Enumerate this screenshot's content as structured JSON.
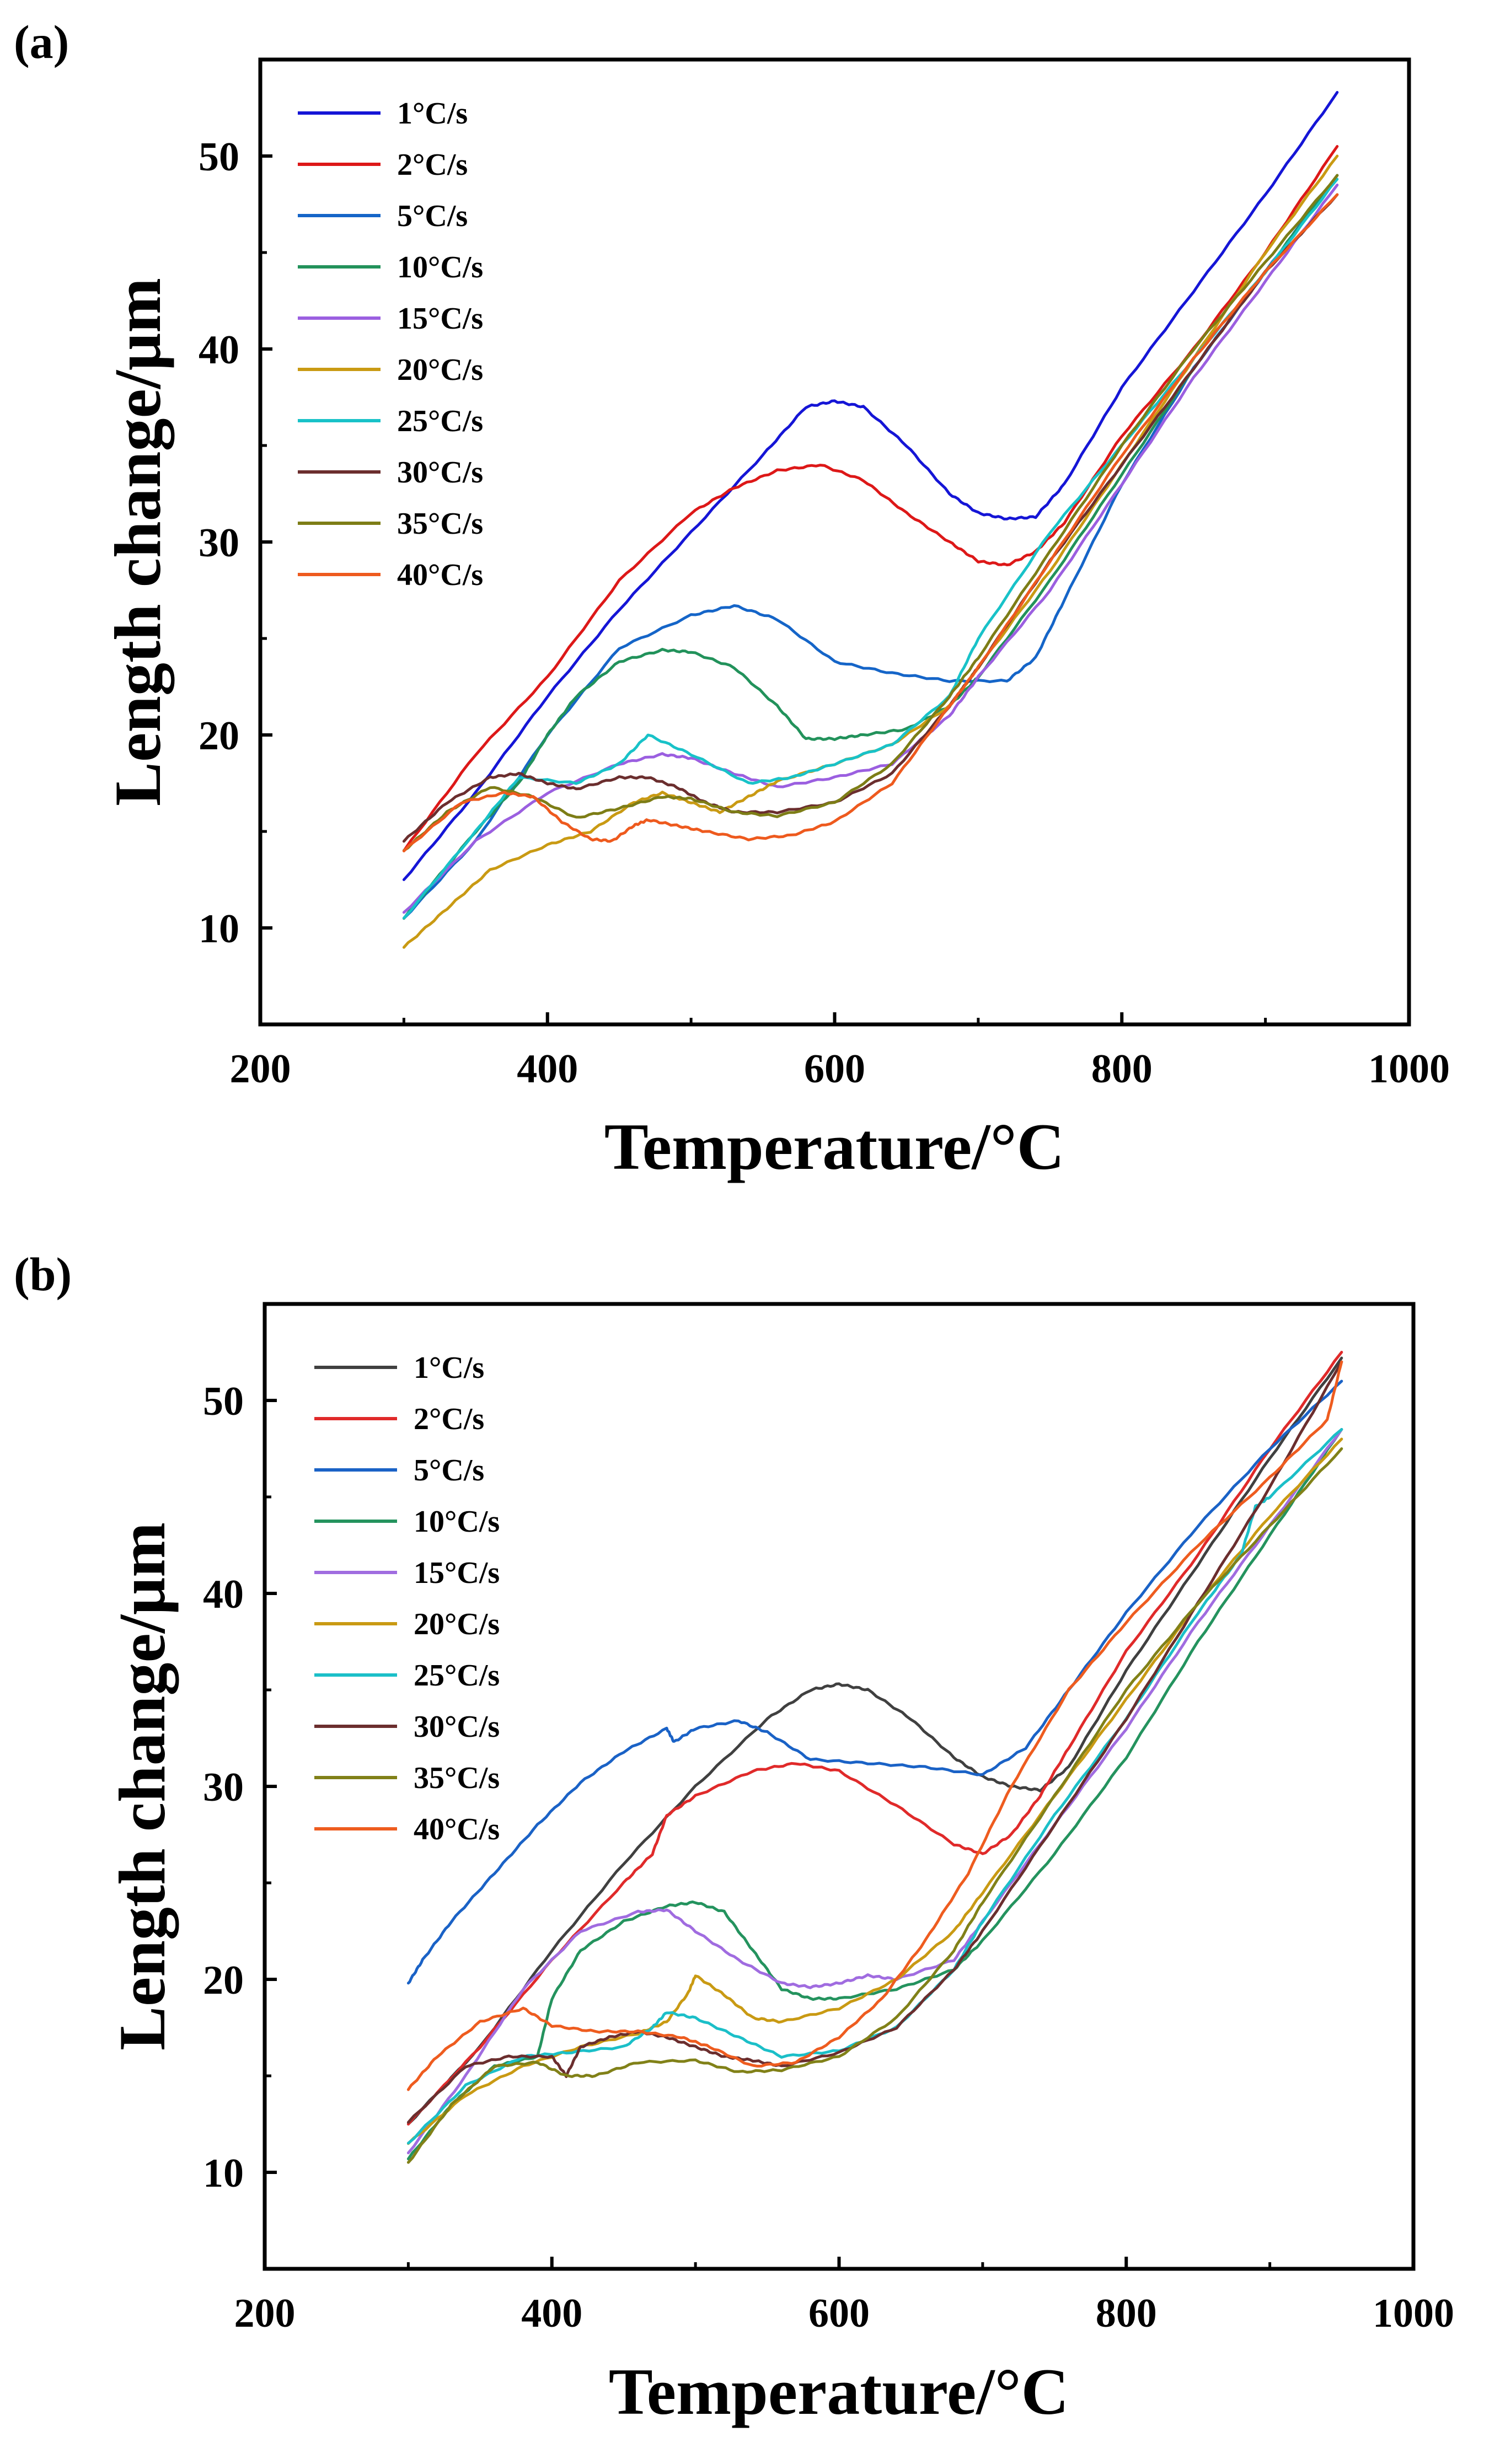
{
  "chart_data": [
    {
      "type": "line",
      "panel_label": "(a)",
      "xlabel": "Temperature/°C",
      "ylabel": "Length change/μm",
      "xlim": [
        200,
        1000
      ],
      "ylim": [
        5,
        55
      ],
      "xticks": [
        200,
        400,
        600,
        800,
        1000
      ],
      "yticks": [
        10,
        20,
        30,
        40,
        50
      ],
      "legend_position": "top-left",
      "series": [
        {
          "name": "1°C/s",
          "color": "#1515d6",
          "x": [
            300,
            350,
            400,
            450,
            500,
            550,
            580,
            600,
            620,
            650,
            680,
            700,
            720,
            740,
            760,
            800,
            850,
            900,
            950
          ],
          "y": [
            12.5,
            17,
            22,
            26.5,
            30.5,
            34.5,
            37,
            37.3,
            37,
            35,
            32.5,
            31.5,
            31.2,
            31.3,
            33,
            38,
            43,
            48,
            53.3
          ]
        },
        {
          "name": "2°C/s",
          "color": "#dd1818",
          "x": [
            300,
            350,
            400,
            450,
            500,
            530,
            560,
            590,
            620,
            650,
            680,
            700,
            720,
            740,
            760,
            800,
            850,
            900,
            950
          ],
          "y": [
            14,
            19,
            23,
            28,
            31.5,
            32.8,
            33.7,
            34,
            33.2,
            31.5,
            30,
            29,
            28.8,
            29.5,
            31,
            35.5,
            40,
            45,
            50.5
          ]
        },
        {
          "name": "5°C/s",
          "color": "#1565c8",
          "x": [
            300,
            350,
            400,
            450,
            500,
            530,
            560,
            600,
            640,
            680,
            720,
            740,
            760,
            800,
            850,
            900,
            950
          ],
          "y": [
            10.5,
            14.5,
            20,
            24.5,
            26.2,
            26.7,
            26,
            23.8,
            23.2,
            22.8,
            22.8,
            24,
            27,
            33,
            39,
            44,
            49
          ]
        },
        {
          "name": "10°C/s",
          "color": "#22925b",
          "x": [
            300,
            350,
            380,
            400,
            420,
            450,
            480,
            500,
            530,
            560,
            580,
            600,
            620,
            650,
            680,
            700,
            750,
            800,
            850,
            900,
            950
          ],
          "y": [
            10.5,
            15,
            17.5,
            20,
            22,
            23.8,
            24.4,
            24.3,
            23.5,
            21.5,
            19.8,
            19.8,
            20,
            20.3,
            21.5,
            23,
            28,
            33.5,
            39,
            44,
            49
          ]
        },
        {
          "name": "15°C/s",
          "color": "#9b5fe0",
          "x": [
            300,
            350,
            400,
            450,
            480,
            500,
            530,
            560,
            600,
            640,
            680,
            700,
            750,
            800,
            850,
            900,
            950
          ],
          "y": [
            10.8,
            14.5,
            17,
            18.5,
            19,
            18.8,
            18,
            17.3,
            17.8,
            18.5,
            21,
            23,
            27.5,
            33,
            38.5,
            43.5,
            48.5
          ]
        },
        {
          "name": "20°C/s",
          "color": "#c99a13",
          "x": [
            300,
            330,
            360,
            400,
            430,
            460,
            480,
            500,
            520,
            540,
            560,
            600,
            640,
            680,
            700,
            750,
            800,
            850,
            900,
            950
          ],
          "y": [
            9,
            11,
            13,
            14.3,
            15,
            16.5,
            17,
            16.5,
            16,
            16.8,
            17.6,
            18.5,
            19.5,
            21.5,
            23.5,
            28.5,
            34,
            39.5,
            45,
            50
          ]
        },
        {
          "name": "25°C/s",
          "color": "#18c2c8",
          "x": [
            300,
            350,
            380,
            420,
            450,
            470,
            500,
            540,
            570,
            600,
            640,
            680,
            700,
            750,
            800,
            850,
            900,
            950
          ],
          "y": [
            10.5,
            15,
            17.8,
            17.5,
            18.5,
            20,
            19,
            17.5,
            17.8,
            18.5,
            19.5,
            22,
            25,
            30.5,
            35,
            39.5,
            44,
            48.8
          ]
        },
        {
          "name": "30°C/s",
          "color": "#6b2e2e",
          "x": [
            300,
            330,
            360,
            380,
            400,
            420,
            450,
            470,
            490,
            510,
            530,
            560,
            600,
            640,
            680,
            700,
            750,
            800,
            850,
            900,
            950
          ],
          "y": [
            14.5,
            16.5,
            17.8,
            18,
            17.5,
            17.2,
            17.8,
            17.8,
            17.3,
            16.5,
            16,
            16,
            16.5,
            18,
            21.5,
            23.5,
            29,
            34,
            39,
            44,
            48
          ]
        },
        {
          "name": "35°C/s",
          "color": "#7d7d16",
          "x": [
            300,
            330,
            360,
            390,
            420,
            450,
            480,
            500,
            530,
            560,
            600,
            640,
            680,
            700,
            750,
            800,
            850,
            900,
            950
          ],
          "y": [
            14,
            16,
            17.3,
            16.8,
            15.7,
            16.2,
            16.8,
            16.7,
            16,
            15.8,
            16.5,
            18.5,
            22,
            24,
            29.5,
            35,
            40,
            44.5,
            49
          ]
        },
        {
          "name": "40°C/s",
          "color": "#ee5a1e",
          "x": [
            300,
            340,
            370,
            390,
            410,
            430,
            445,
            460,
            470,
            490,
            510,
            540,
            570,
            600,
            640,
            680,
            700,
            750,
            800,
            850,
            900,
            950
          ],
          "y": [
            14,
            16.5,
            17,
            16.8,
            15.5,
            14.6,
            14.5,
            15.3,
            15.6,
            15.3,
            15,
            14.6,
            14.8,
            15.5,
            17.5,
            21.5,
            23.5,
            29,
            34.5,
            39.5,
            44,
            48
          ]
        }
      ]
    },
    {
      "type": "line",
      "panel_label": "(b)",
      "xlabel": "Temperature/°C",
      "ylabel": "Length change/μm",
      "xlim": [
        200,
        1000
      ],
      "ylim": [
        5,
        55
      ],
      "xticks": [
        200,
        400,
        600,
        800,
        1000
      ],
      "yticks": [
        10,
        20,
        30,
        40,
        50
      ],
      "legend_position": "top-left",
      "series": [
        {
          "name": "1°C/s",
          "color": "#404040",
          "x": [
            300,
            350,
            400,
            450,
            500,
            550,
            580,
            600,
            620,
            650,
            680,
            700,
            720,
            740,
            760,
            800,
            850,
            900,
            950
          ],
          "y": [
            12.5,
            16.5,
            21.5,
            26,
            30,
            33.5,
            35,
            35.3,
            35,
            33.5,
            31.5,
            30.5,
            30,
            29.8,
            31,
            36,
            41.5,
            47,
            52.2
          ]
        },
        {
          "name": "2°C/s",
          "color": "#e02a2a",
          "x": [
            300,
            350,
            400,
            450,
            470,
            480,
            500,
            540,
            570,
            600,
            640,
            680,
            700,
            720,
            740,
            760,
            800,
            850,
            900,
            950
          ],
          "y": [
            12.5,
            16.5,
            21,
            25,
            26.5,
            28.5,
            29.5,
            30.8,
            31.2,
            30.8,
            29,
            27,
            26.5,
            27.5,
            29.5,
            32,
            37,
            42,
            47.5,
            52.5
          ]
        },
        {
          "name": "5°C/s",
          "color": "#1a62c6",
          "x": [
            300,
            310,
            330,
            360,
            390,
            420,
            450,
            480,
            485,
            500,
            530,
            550,
            580,
            620,
            660,
            700,
            730,
            760,
            800,
            850,
            900,
            950
          ],
          "y": [
            19.8,
            21,
            23,
            25.5,
            28,
            30.2,
            31.8,
            33,
            32.3,
            33,
            33.4,
            32.8,
            31.4,
            31.2,
            31,
            30.6,
            32,
            35,
            39,
            43.5,
            47.5,
            51
          ]
        },
        {
          "name": "10°C/s",
          "color": "#24935e",
          "x": [
            300,
            330,
            360,
            390,
            400,
            420,
            450,
            480,
            500,
            520,
            540,
            560,
            580,
            600,
            640,
            680,
            700,
            750,
            800,
            850,
            900,
            950
          ],
          "y": [
            10.7,
            13.5,
            15.5,
            16,
            19,
            21.5,
            23,
            23.8,
            24,
            23.5,
            21.5,
            19.5,
            19,
            19,
            19.5,
            20.5,
            22,
            26.5,
            31.5,
            37.5,
            43,
            48.5
          ]
        },
        {
          "name": "15°C/s",
          "color": "#a06ce0",
          "x": [
            300,
            340,
            380,
            420,
            460,
            480,
            500,
            530,
            560,
            580,
            600,
            620,
            640,
            680,
            700,
            750,
            800,
            850,
            900,
            950
          ],
          "y": [
            11,
            15,
            19.5,
            22.5,
            23.5,
            23.6,
            22.5,
            21,
            19.8,
            19.6,
            19.8,
            20.2,
            20,
            21,
            23,
            28,
            33,
            38.5,
            43.5,
            48.5
          ]
        },
        {
          "name": "20°C/s",
          "color": "#c99a13",
          "x": [
            300,
            340,
            380,
            420,
            460,
            480,
            495,
            500,
            520,
            540,
            560,
            600,
            640,
            680,
            700,
            750,
            800,
            850,
            900,
            950
          ],
          "y": [
            11.5,
            14,
            15.5,
            16.5,
            17.2,
            17.8,
            19.3,
            20.2,
            19.2,
            18,
            17.8,
            18.5,
            20,
            22.5,
            24.5,
            29.5,
            34.5,
            39.5,
            44,
            48
          ]
        },
        {
          "name": "25°C/s",
          "color": "#1bbfc8",
          "x": [
            300,
            340,
            380,
            410,
            450,
            470,
            480,
            500,
            530,
            560,
            600,
            640,
            680,
            700,
            750,
            800,
            850,
            880,
            890,
            900,
            950
          ],
          "y": [
            11.5,
            14.5,
            16,
            16.2,
            16.5,
            17.5,
            18.3,
            18,
            17,
            16,
            16.3,
            17.5,
            20.5,
            23,
            28.5,
            33.5,
            39,
            42,
            44.5,
            45,
            48.5
          ]
        },
        {
          "name": "30°C/s",
          "color": "#6b2e2e",
          "x": [
            300,
            340,
            370,
            400,
            410,
            420,
            440,
            460,
            480,
            500,
            520,
            540,
            560,
            600,
            640,
            680,
            700,
            750,
            800,
            850,
            900,
            950
          ],
          "y": [
            12.6,
            15.5,
            16,
            16,
            15,
            16.5,
            17,
            17.3,
            17,
            16.5,
            16,
            15.8,
            15.5,
            16.2,
            17.5,
            20.5,
            22.5,
            28,
            33.5,
            39.5,
            45.5,
            52
          ]
        },
        {
          "name": "35°C/s",
          "color": "#818118",
          "x": [
            300,
            330,
            360,
            390,
            410,
            430,
            460,
            500,
            530,
            560,
            600,
            640,
            680,
            700,
            750,
            800,
            850,
            900,
            950
          ],
          "y": [
            10.5,
            13.5,
            15.5,
            15.7,
            15,
            15,
            15.7,
            15.8,
            15.2,
            15.3,
            16,
            18,
            21.5,
            24,
            29.5,
            35,
            39.5,
            43.5,
            47.5
          ]
        },
        {
          "name": "40°C/s",
          "color": "#ee5c1f",
          "x": [
            300,
            320,
            350,
            380,
            400,
            430,
            460,
            490,
            510,
            540,
            570,
            600,
            630,
            660,
            690,
            720,
            760,
            800,
            850,
            900,
            940,
            950
          ],
          "y": [
            14.3,
            16,
            17.8,
            18.5,
            17.6,
            17.3,
            17.3,
            17,
            16.5,
            15.5,
            15.7,
            17,
            19,
            22,
            25.5,
            30,
            35,
            38.5,
            42.5,
            46,
            49,
            52
          ]
        }
      ]
    }
  ]
}
